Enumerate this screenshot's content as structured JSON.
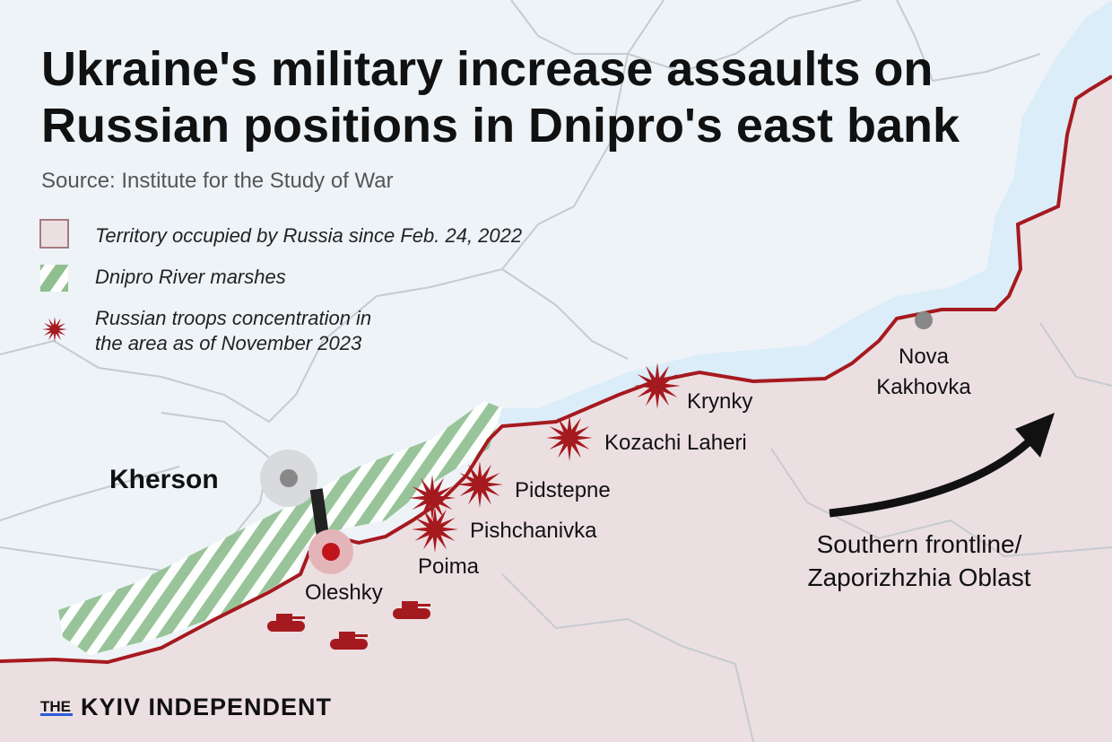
{
  "title": [
    "Ukraine's military increase assaults on",
    "Russian positions in Dnipro's east bank"
  ],
  "source": "Source: Institute for the Study of War",
  "legend": [
    {
      "label": [
        "Territory occupied by Russia since Feb. 24, 2022"
      ]
    },
    {
      "label": [
        "Dnipro River marshes"
      ]
    },
    {
      "label": [
        "Russian troops concentration in",
        "the area as of November 2023"
      ]
    }
  ],
  "places": [
    {
      "label": [
        "Kherson"
      ]
    },
    {
      "label": [
        "Oleshky"
      ]
    },
    {
      "label": [
        "Poima"
      ]
    },
    {
      "label": [
        "Pishchanivka"
      ]
    },
    {
      "label": [
        "Pidstepne"
      ]
    },
    {
      "label": [
        "Kozachi Laheri"
      ]
    },
    {
      "label": [
        "Krynky"
      ]
    },
    {
      "label": [
        "Nova",
        "Kakhovka"
      ]
    }
  ],
  "annotation": [
    "Southern frontline/",
    "Zaporizhzhia Oblast"
  ],
  "logo": {
    "prefix": "THE",
    "name": "KYIV INDEPENDENT"
  }
}
